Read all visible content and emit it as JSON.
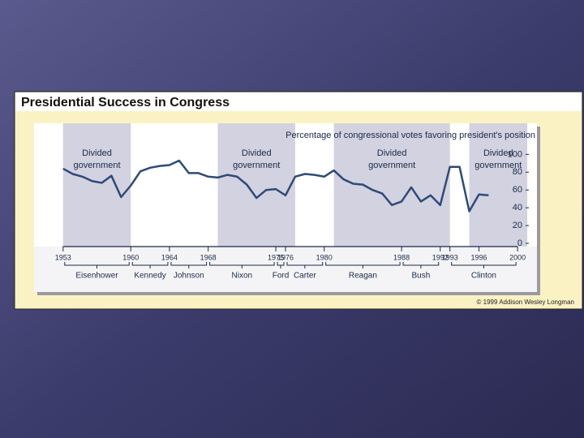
{
  "chart_data": {
    "type": "line",
    "title": "Presidential Success in Congress",
    "y_axis_label": "Percentage of congressional votes favoring president's position",
    "credit": "© 1999 Addison Wesley Longman",
    "x": [
      1953,
      1954,
      1955,
      1956,
      1957,
      1958,
      1959,
      1960,
      1961,
      1962,
      1963,
      1964,
      1965,
      1966,
      1967,
      1968,
      1969,
      1970,
      1971,
      1972,
      1973,
      1974,
      1975,
      1976,
      1977,
      1978,
      1979,
      1980,
      1981,
      1982,
      1983,
      1984,
      1985,
      1986,
      1987,
      1988,
      1989,
      1990,
      1991,
      1992,
      1993,
      1994,
      1995,
      1996,
      1997
    ],
    "series": [
      {
        "name": "Presidential success",
        "color": "#2e4a78",
        "values": [
          84,
          78,
          75,
          70,
          68,
          76,
          52,
          65,
          81,
          85,
          87,
          88,
          93,
          79,
          79,
          75,
          74,
          77,
          75,
          66,
          51,
          60,
          61,
          54,
          75,
          78,
          77,
          75,
          82,
          72,
          67,
          66,
          60,
          56,
          43,
          47,
          63,
          47,
          54,
          43,
          86,
          86,
          36,
          55,
          54
        ]
      }
    ],
    "xlim": [
      1950,
      2002
    ],
    "xticks": [
      1953,
      1960,
      1964,
      1968,
      1975,
      1976,
      1980,
      1988,
      1992,
      1993,
      1996,
      2000
    ],
    "ylim": [
      0,
      135
    ],
    "yticks": [
      0,
      20,
      40,
      60,
      80,
      100
    ],
    "divided_government": [
      {
        "label": [
          "Divided",
          "government"
        ],
        "start": 1953,
        "end": 1960
      },
      {
        "label": [
          "Divided",
          "government"
        ],
        "start": 1969,
        "end": 1977
      },
      {
        "label": [
          "Divided",
          "government"
        ],
        "start": 1981,
        "end": 1993
      },
      {
        "label": [
          "Divided",
          "government"
        ],
        "start": 1995,
        "end": 2001
      }
    ],
    "presidents": [
      {
        "name": "Eisenhower",
        "start": 1953,
        "end": 1960
      },
      {
        "name": "Kennedy",
        "start": 1960,
        "end": 1964
      },
      {
        "name": "Johnson",
        "start": 1964,
        "end": 1968
      },
      {
        "name": "Nixon",
        "start": 1968,
        "end": 1975
      },
      {
        "name": "Ford",
        "start": 1975,
        "end": 1976
      },
      {
        "name": "Carter",
        "start": 1976,
        "end": 1980
      },
      {
        "name": "Reagan",
        "start": 1980,
        "end": 1988
      },
      {
        "name": "Bush",
        "start": 1988,
        "end": 1992
      },
      {
        "name": "Clinton",
        "start": 1993,
        "end": 2000
      }
    ]
  }
}
